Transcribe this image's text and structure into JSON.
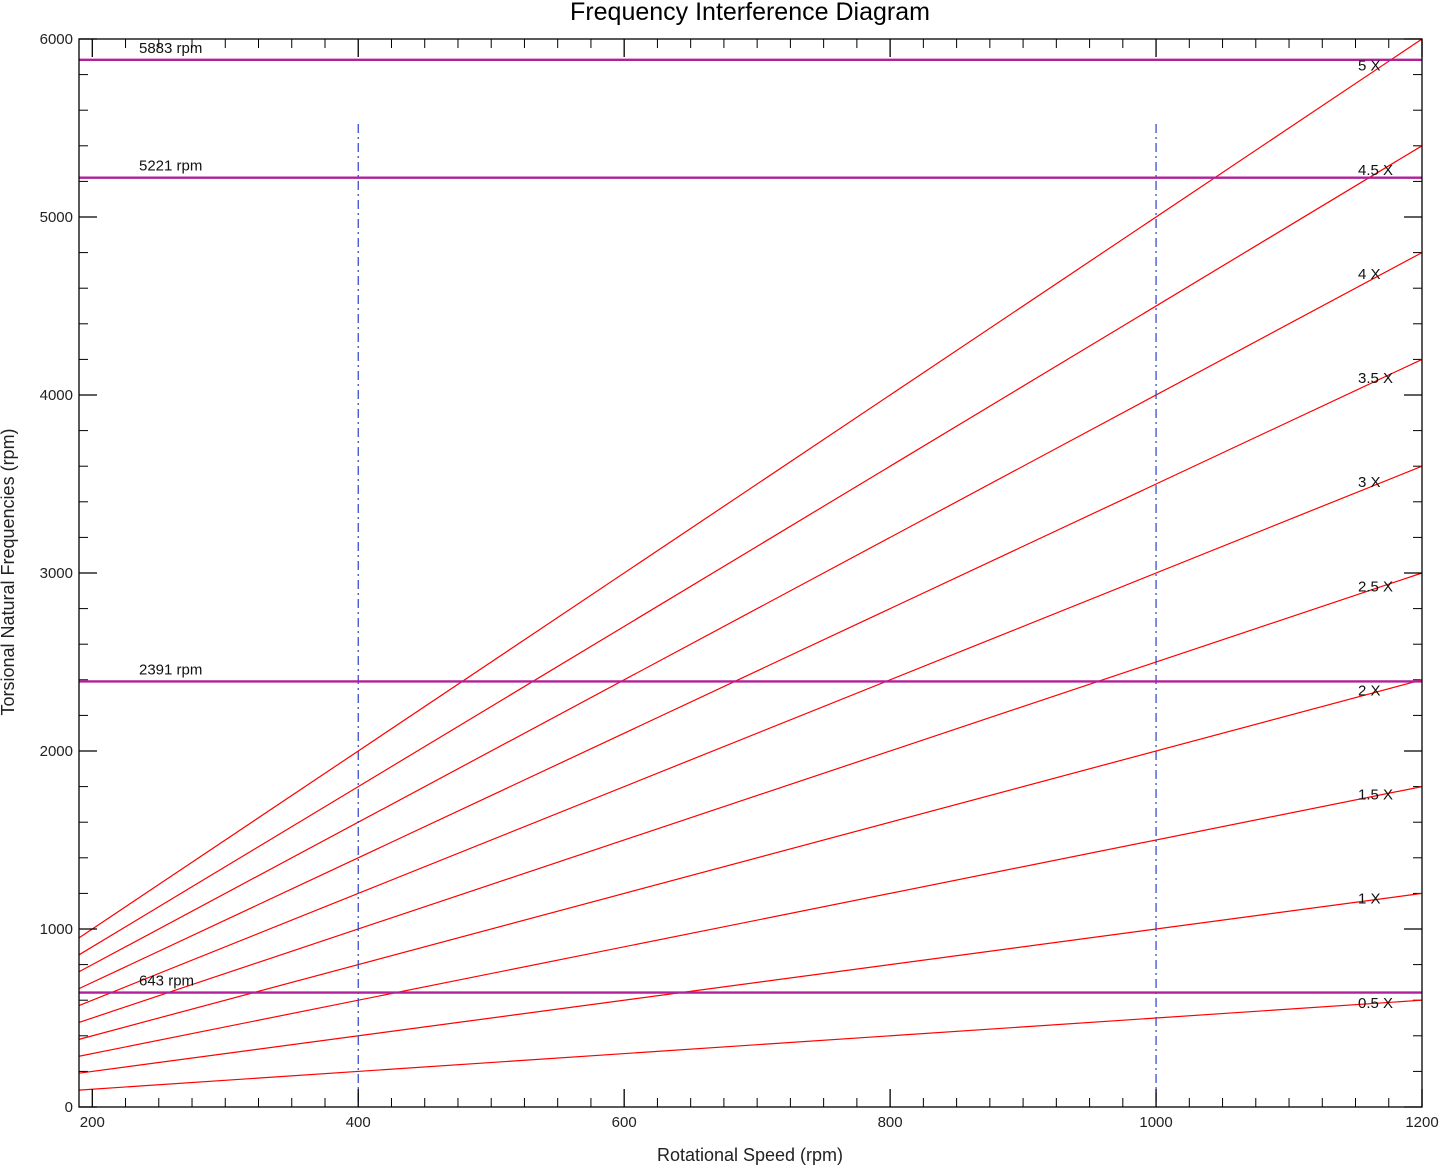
{
  "chart_data": {
    "type": "line",
    "title": "Frequency Interference Diagram",
    "xlabel": "Rotational Speed (rpm)",
    "ylabel": "Torsional Natural Frequencies (rpm)",
    "xlim": [
      190,
      1200
    ],
    "ylim": [
      0,
      6000
    ],
    "x_ticks": [
      200,
      400,
      600,
      800,
      1000,
      1200
    ],
    "y_ticks": [
      0,
      1000,
      2000,
      3000,
      4000,
      5000,
      6000
    ],
    "order_lines": [
      {
        "name": "0.5 X",
        "multiplier": 0.5
      },
      {
        "name": "1 X",
        "multiplier": 1
      },
      {
        "name": "1.5 X",
        "multiplier": 1.5
      },
      {
        "name": "2 X",
        "multiplier": 2
      },
      {
        "name": "2.5 X",
        "multiplier": 2.5
      },
      {
        "name": "3 X",
        "multiplier": 3
      },
      {
        "name": "3.5 X",
        "multiplier": 3.5
      },
      {
        "name": "4 X",
        "multiplier": 4
      },
      {
        "name": "4.5 X",
        "multiplier": 4.5
      },
      {
        "name": "5 X",
        "multiplier": 5
      }
    ],
    "natural_frequencies": [
      {
        "label": "643 rpm",
        "value": 643
      },
      {
        "label": "2391 rpm",
        "value": 2391
      },
      {
        "label": "5221 rpm",
        "value": 5221
      },
      {
        "label": "5883 rpm",
        "value": 5883
      }
    ],
    "operating_range": [
      400,
      1000
    ],
    "colors": {
      "order_lines": "#ff0000",
      "natural_frequencies": "#b0209a",
      "operating_range": "#2a3fc9"
    }
  }
}
